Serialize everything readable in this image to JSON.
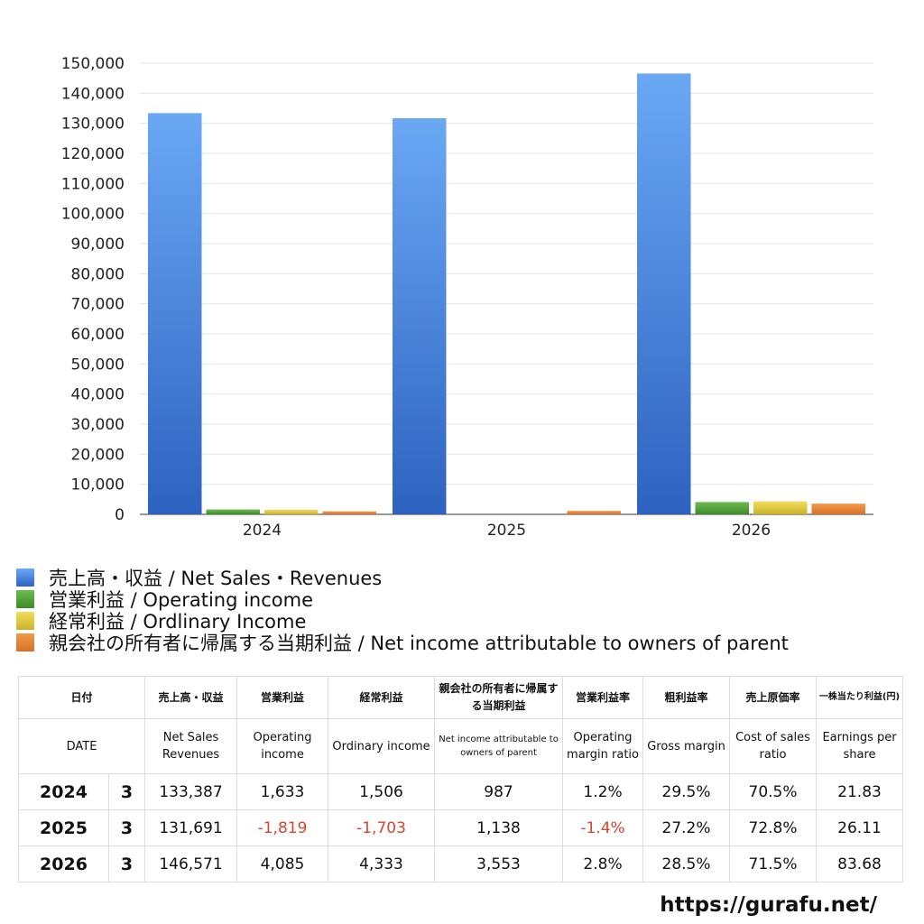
{
  "chart_data": {
    "type": "bar",
    "categories": [
      "2024",
      "2025",
      "2026"
    ],
    "series": [
      {
        "name": "売上高・収益 / Net Sales・Revenues",
        "values": [
          133387,
          131691,
          146571
        ],
        "color_top": "#6aa8f4",
        "color_bottom": "#2e62c0"
      },
      {
        "name": "営業利益 / Operating income",
        "values": [
          1633,
          -1819,
          4085
        ],
        "color_top": "#6dbb4e",
        "color_bottom": "#3f8a2c"
      },
      {
        "name": "経常利益 / Ordlinary Income",
        "values": [
          1506,
          -1703,
          4333
        ],
        "color_top": "#f1de5e",
        "color_bottom": "#cbb22a"
      },
      {
        "name": "親会社の所有者に帰属する当期利益 / Net income attributable to owners of parent",
        "values": [
          987,
          1138,
          3553
        ],
        "color_top": "#f09a4a",
        "color_bottom": "#d9702a"
      }
    ],
    "yticks": [
      "0",
      "10,000",
      "20,000",
      "30,000",
      "40,000",
      "50,000",
      "60,000",
      "70,000",
      "80,000",
      "90,000",
      "100,000",
      "110,000",
      "120,000",
      "130,000",
      "140,000",
      "150,000"
    ],
    "ylim": [
      0,
      150000
    ],
    "grid": true,
    "legend_position": "bottom"
  },
  "table": {
    "header_jp": [
      "日付",
      "売上高・収益",
      "営業利益",
      "経常利益",
      "親会社の所有者に帰属する当期利益",
      "営業利益率",
      "粗利益率",
      "売上原価率",
      "一株当たり利益(円)"
    ],
    "header_en": [
      "DATE",
      "Net Sales Revenues",
      "Operating income",
      "Ordinary income",
      "Net income attributable to owners of parent",
      "Operating margin ratio",
      "Gross margin",
      "Cost of sales ratio",
      "Earnings per share"
    ],
    "rows": [
      {
        "year": "2024",
        "month": "3",
        "sales": "133,387",
        "operating": "1,633",
        "ordinary": "1,506",
        "net": "987",
        "op_margin": "1.2%",
        "gross": "29.5%",
        "cost": "70.5%",
        "eps": "21.83"
      },
      {
        "year": "2025",
        "month": "3",
        "sales": "131,691",
        "operating": "-1,819",
        "ordinary": "-1,703",
        "net": "1,138",
        "op_margin": "-1.4%",
        "gross": "27.2%",
        "cost": "72.8%",
        "eps": "26.11"
      },
      {
        "year": "2026",
        "month": "3",
        "sales": "146,571",
        "operating": "4,085",
        "ordinary": "4,333",
        "net": "3,553",
        "op_margin": "2.8%",
        "gross": "28.5%",
        "cost": "71.5%",
        "eps": "83.68"
      }
    ],
    "negative_color": "#d6452e"
  },
  "source": "https://gurafu.net/"
}
